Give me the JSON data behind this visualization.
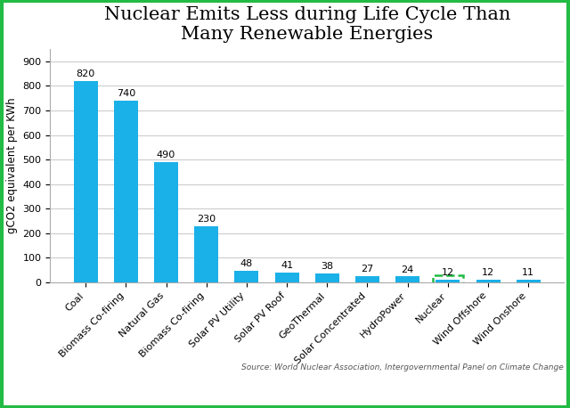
{
  "categories": [
    "Coal",
    "Biomass Co-firing",
    "Natural Gas",
    "Biomass Co-firing",
    "Solar PV Utility",
    "Solar PV Roof",
    "GeoThermal",
    "Solar Concentrated",
    "HydroPower",
    "Nuclear",
    "Wind Offshore",
    "Wind Onshore"
  ],
  "values": [
    820,
    740,
    490,
    230,
    48,
    41,
    38,
    27,
    24,
    12,
    12,
    11
  ],
  "bar_color": "#1AB0E8",
  "nuclear_index": 9,
  "nuclear_box_color": "#22BB44",
  "title_line1": "Nuclear Emits Less during Life Cycle Than",
  "title_line2": "Many Renewable Energies",
  "ylabel": "gCO2 equivalent per KWh",
  "ylim": [
    0,
    950
  ],
  "yticks": [
    0,
    100,
    200,
    300,
    400,
    500,
    600,
    700,
    800,
    900
  ],
  "source_text": "Source: World Nuclear Association, Intergovernmental Panel on Climate Change",
  "background_color": "#FFFFFF",
  "outer_border_color": "#22BB44",
  "grid_color": "#CCCCCC",
  "title_fontsize": 15,
  "label_fontsize": 8,
  "ylabel_fontsize": 8.5,
  "source_fontsize": 6.5,
  "tick_fontsize": 8
}
